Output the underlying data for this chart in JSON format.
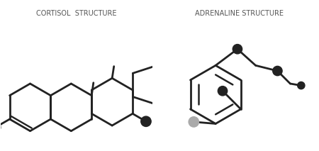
{
  "background_color": "#ffffff",
  "title_left": "CORTISOL  STRUCTURE",
  "title_right": "ADRENALINE STRUCTURE",
  "title_fontsize": 7.0,
  "title_color": "#555555",
  "line_color": "#222222",
  "node_dark": "#222222",
  "node_gray": "#aaaaaa",
  "lw": 2.0
}
